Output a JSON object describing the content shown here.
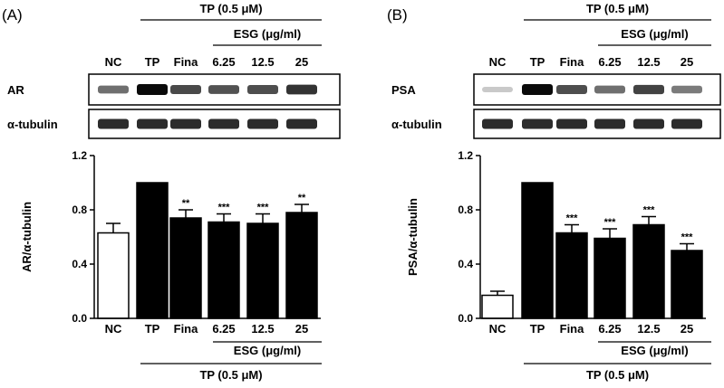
{
  "chart_data": [
    {
      "type": "bar",
      "panel_label": "(A)",
      "categories": [
        "NC",
        "TP",
        "Fina",
        "6.25",
        "12.5",
        "25"
      ],
      "values": [
        0.63,
        1.0,
        0.74,
        0.71,
        0.7,
        0.78
      ],
      "errors": [
        0.07,
        0.0,
        0.06,
        0.06,
        0.07,
        0.06
      ],
      "significance": [
        "",
        "",
        "**",
        "***",
        "***",
        "**"
      ],
      "ylabel": "AR/α-tubulin",
      "ylim": [
        0.0,
        1.2
      ],
      "yticks": [
        "0.0",
        "0.4",
        "0.8",
        "1.2"
      ],
      "bar_colors": [
        "#ffffff",
        "#000000",
        "#000000",
        "#000000",
        "#000000",
        "#000000"
      ],
      "treatment_label": "TP (0.5 μM)",
      "esg_label": "ESG (μg/ml)",
      "blots": [
        {
          "label": "AR",
          "intensities": [
            0.55,
            1.0,
            0.72,
            0.68,
            0.7,
            0.82
          ]
        },
        {
          "label": "α-tubulin",
          "intensities": [
            0.85,
            0.85,
            0.85,
            0.85,
            0.85,
            0.85
          ]
        }
      ],
      "grid": false
    },
    {
      "type": "bar",
      "panel_label": "(B)",
      "categories": [
        "NC",
        "TP",
        "Fina",
        "6.25",
        "12.5",
        "25"
      ],
      "values": [
        0.17,
        1.0,
        0.63,
        0.59,
        0.69,
        0.5
      ],
      "errors": [
        0.03,
        0.0,
        0.06,
        0.07,
        0.06,
        0.05
      ],
      "significance": [
        "",
        "",
        "***",
        "***",
        "***",
        "***"
      ],
      "ylabel": "PSA/α-tubulin",
      "ylim": [
        0.0,
        1.2
      ],
      "yticks": [
        "0.0",
        "0.4",
        "0.8",
        "1.2"
      ],
      "bar_colors": [
        "#ffffff",
        "#000000",
        "#000000",
        "#000000",
        "#000000",
        "#000000"
      ],
      "treatment_label": "TP (0.5 μM)",
      "esg_label": "ESG (μg/ml)",
      "blots": [
        {
          "label": "PSA",
          "intensities": [
            0.15,
            1.0,
            0.7,
            0.55,
            0.75,
            0.5
          ]
        },
        {
          "label": "α-tubulin",
          "intensities": [
            0.85,
            0.85,
            0.85,
            0.85,
            0.85,
            0.85
          ]
        }
      ],
      "grid": false
    }
  ]
}
